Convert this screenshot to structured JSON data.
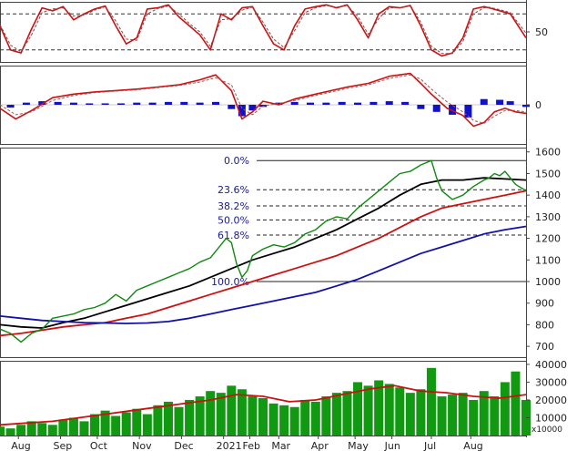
{
  "chart_data": [
    {
      "type": "line",
      "panel": "stochastic",
      "ylim": [
        0,
        100
      ],
      "y_ticks": [
        "50"
      ],
      "y_tick_values": [
        50
      ],
      "reference_levels": [
        80,
        20
      ],
      "series": [
        {
          "color": "#cc1111",
          "style": "solid",
          "x": [
            0.0,
            0.02,
            0.04,
            0.06,
            0.08,
            0.1,
            0.12,
            0.14,
            0.16,
            0.18,
            0.2,
            0.22,
            0.24,
            0.26,
            0.28,
            0.3,
            0.32,
            0.34,
            0.36,
            0.38,
            0.4,
            0.42,
            0.44,
            0.46,
            0.48,
            0.5,
            0.52,
            0.54,
            0.56,
            0.58,
            0.6,
            0.62,
            0.64,
            0.66,
            0.68,
            0.7,
            0.72,
            0.74,
            0.76,
            0.78,
            0.8,
            0.82,
            0.84,
            0.86,
            0.88,
            0.9,
            0.92,
            0.93,
            0.95,
            0.97,
            1.0
          ],
          "values": [
            60,
            20,
            15,
            55,
            90,
            85,
            92,
            70,
            80,
            88,
            93,
            60,
            30,
            40,
            88,
            90,
            95,
            75,
            60,
            45,
            20,
            80,
            70,
            90,
            92,
            60,
            30,
            20,
            60,
            88,
            92,
            95,
            90,
            95,
            70,
            40,
            80,
            92,
            90,
            94,
            60,
            20,
            10,
            15,
            40,
            88,
            92,
            90,
            85,
            80,
            40
          ]
        },
        {
          "color": "#884444",
          "style": "dashed",
          "x": [
            0.0,
            0.02,
            0.04,
            0.06,
            0.08,
            0.1,
            0.12,
            0.14,
            0.16,
            0.18,
            0.2,
            0.22,
            0.24,
            0.26,
            0.28,
            0.3,
            0.32,
            0.34,
            0.36,
            0.38,
            0.4,
            0.42,
            0.44,
            0.46,
            0.48,
            0.5,
            0.52,
            0.54,
            0.56,
            0.58,
            0.6,
            0.62,
            0.64,
            0.66,
            0.68,
            0.7,
            0.72,
            0.74,
            0.76,
            0.78,
            0.8,
            0.82,
            0.84,
            0.86,
            0.88,
            0.9,
            0.92,
            0.93,
            0.95,
            0.97,
            1.0
          ],
          "values": [
            62,
            28,
            17,
            45,
            82,
            88,
            90,
            76,
            78,
            86,
            92,
            68,
            38,
            36,
            80,
            89,
            93,
            80,
            64,
            50,
            26,
            70,
            72,
            86,
            91,
            66,
            38,
            24,
            52,
            82,
            90,
            94,
            91,
            94,
            76,
            46,
            72,
            90,
            90,
            93,
            66,
            26,
            14,
            14,
            34,
            80,
            90,
            91,
            87,
            82,
            48
          ]
        }
      ]
    },
    {
      "type": "line",
      "panel": "macd",
      "y_ticks": [
        "0"
      ],
      "y_tick_values": [
        0
      ],
      "series": [
        {
          "color": "#cc1111",
          "style": "solid",
          "x": [
            0.0,
            0.03,
            0.06,
            0.1,
            0.14,
            0.18,
            0.22,
            0.26,
            0.3,
            0.34,
            0.38,
            0.41,
            0.44,
            0.46,
            0.48,
            0.5,
            0.53,
            0.56,
            0.6,
            0.63,
            0.66,
            0.7,
            0.74,
            0.78,
            0.8,
            0.82,
            0.85,
            0.88,
            0.9,
            0.92,
            0.94,
            0.96,
            0.98,
            1.0
          ],
          "values": [
            -5,
            -20,
            -8,
            10,
            15,
            18,
            20,
            22,
            25,
            28,
            35,
            42,
            20,
            -20,
            -10,
            5,
            0,
            8,
            15,
            20,
            25,
            30,
            40,
            44,
            30,
            15,
            -5,
            -15,
            -30,
            -25,
            -10,
            -5,
            -10,
            -12
          ]
        },
        {
          "color": "#aa5555",
          "style": "dashed",
          "x": [
            0.0,
            0.03,
            0.06,
            0.1,
            0.14,
            0.18,
            0.22,
            0.26,
            0.3,
            0.34,
            0.38,
            0.41,
            0.44,
            0.46,
            0.48,
            0.5,
            0.53,
            0.56,
            0.6,
            0.63,
            0.66,
            0.7,
            0.74,
            0.78,
            0.8,
            0.82,
            0.85,
            0.88,
            0.9,
            0.92,
            0.94,
            0.96,
            0.98,
            1.0
          ],
          "values": [
            0,
            -14,
            -10,
            6,
            13,
            17,
            19,
            21,
            24,
            27,
            32,
            38,
            28,
            -5,
            -14,
            -2,
            2,
            6,
            13,
            18,
            23,
            28,
            37,
            42,
            36,
            22,
            4,
            -10,
            -22,
            -26,
            -16,
            -8,
            -8,
            -10
          ]
        }
      ],
      "histogram": {
        "color": "#1111cc",
        "x": [
          0.02,
          0.05,
          0.08,
          0.11,
          0.14,
          0.17,
          0.2,
          0.23,
          0.26,
          0.29,
          0.32,
          0.35,
          0.38,
          0.41,
          0.44,
          0.46,
          0.48,
          0.5,
          0.53,
          0.56,
          0.59,
          0.62,
          0.65,
          0.68,
          0.71,
          0.74,
          0.77,
          0.8,
          0.83,
          0.86,
          0.89,
          0.92,
          0.95,
          0.97,
          1.0
        ],
        "values": [
          -4,
          3,
          5,
          4,
          3,
          2,
          2,
          2,
          3,
          3,
          4,
          4,
          3,
          4,
          -6,
          -16,
          -8,
          -3,
          3,
          4,
          3,
          3,
          4,
          3,
          4,
          5,
          4,
          -6,
          -10,
          -14,
          -18,
          8,
          7,
          5,
          -3
        ]
      }
    },
    {
      "type": "line",
      "panel": "price",
      "ylim": [
        650,
        1620
      ],
      "y_ticks": [
        "700",
        "800",
        "900",
        "1000",
        "1100",
        "1200",
        "1300",
        "1400",
        "1500",
        "1600"
      ],
      "y_tick_values": [
        700,
        800,
        900,
        1000,
        1100,
        1200,
        1300,
        1400,
        1500,
        1600
      ],
      "x_ticks": [
        "Aug",
        "Sep",
        "Oct",
        "Nov",
        "Dec",
        "2021",
        "Feb",
        "Mar",
        "Apr",
        "May",
        "Jun",
        "Jul",
        "Aug"
      ],
      "x_tick_positions": [
        0.035,
        0.115,
        0.185,
        0.265,
        0.345,
        0.425,
        0.475,
        0.53,
        0.605,
        0.675,
        0.745,
        0.82,
        0.895
      ],
      "fibonacci": [
        {
          "label": "0.0%",
          "value": 1560
        },
        {
          "label": "23.6%",
          "value": 1425
        },
        {
          "label": "38.2%",
          "value": 1350
        },
        {
          "label": "50.0%",
          "value": 1285
        },
        {
          "label": "61.8%",
          "value": 1215
        },
        {
          "label": "100.0%",
          "value": 1000
        }
      ],
      "price": {
        "color": "#118811",
        "x": [
          0.0,
          0.02,
          0.04,
          0.06,
          0.08,
          0.1,
          0.12,
          0.14,
          0.16,
          0.18,
          0.2,
          0.22,
          0.24,
          0.26,
          0.28,
          0.3,
          0.32,
          0.34,
          0.36,
          0.38,
          0.4,
          0.42,
          0.43,
          0.44,
          0.45,
          0.46,
          0.47,
          0.48,
          0.5,
          0.52,
          0.54,
          0.56,
          0.58,
          0.6,
          0.62,
          0.64,
          0.66,
          0.68,
          0.7,
          0.72,
          0.74,
          0.76,
          0.78,
          0.8,
          0.81,
          0.82,
          0.83,
          0.84,
          0.86,
          0.88,
          0.9,
          0.92,
          0.93,
          0.94,
          0.95,
          0.96,
          0.97,
          0.98,
          1.0
        ],
        "values": [
          780,
          760,
          720,
          760,
          780,
          830,
          840,
          850,
          870,
          880,
          900,
          940,
          910,
          960,
          980,
          1000,
          1020,
          1040,
          1060,
          1090,
          1110,
          1170,
          1200,
          1180,
          1080,
          1020,
          1050,
          1120,
          1150,
          1170,
          1160,
          1180,
          1220,
          1240,
          1280,
          1300,
          1290,
          1340,
          1380,
          1420,
          1460,
          1500,
          1510,
          1540,
          1550,
          1560,
          1480,
          1420,
          1380,
          1400,
          1440,
          1470,
          1480,
          1500,
          1490,
          1510,
          1480,
          1450,
          1420
        ]
      },
      "series": [
        {
          "color": "#000000",
          "style": "solid",
          "x": [
            0.0,
            0.04,
            0.08,
            0.12,
            0.16,
            0.2,
            0.24,
            0.28,
            0.32,
            0.36,
            0.4,
            0.44,
            0.48,
            0.52,
            0.56,
            0.6,
            0.64,
            0.68,
            0.72,
            0.76,
            0.8,
            0.84,
            0.88,
            0.92,
            0.96,
            1.0
          ],
          "values": [
            800,
            790,
            785,
            810,
            830,
            860,
            890,
            920,
            950,
            980,
            1020,
            1060,
            1100,
            1130,
            1160,
            1200,
            1240,
            1290,
            1340,
            1400,
            1450,
            1470,
            1470,
            1480,
            1475,
            1470
          ]
        },
        {
          "color": "#cc1111",
          "style": "solid",
          "x": [
            0.0,
            0.04,
            0.08,
            0.12,
            0.16,
            0.2,
            0.24,
            0.28,
            0.32,
            0.36,
            0.4,
            0.44,
            0.48,
            0.52,
            0.56,
            0.6,
            0.64,
            0.68,
            0.72,
            0.76,
            0.8,
            0.84,
            0.88,
            0.92,
            0.96,
            1.0
          ],
          "values": [
            750,
            760,
            775,
            790,
            800,
            810,
            830,
            850,
            880,
            910,
            940,
            970,
            1000,
            1030,
            1060,
            1090,
            1120,
            1160,
            1200,
            1250,
            1300,
            1340,
            1360,
            1380,
            1400,
            1420
          ]
        },
        {
          "color": "#1111aa",
          "style": "solid",
          "x": [
            0.0,
            0.04,
            0.08,
            0.12,
            0.16,
            0.2,
            0.24,
            0.28,
            0.32,
            0.36,
            0.4,
            0.44,
            0.48,
            0.52,
            0.56,
            0.6,
            0.64,
            0.68,
            0.72,
            0.76,
            0.8,
            0.84,
            0.88,
            0.92,
            0.96,
            1.0
          ],
          "values": [
            840,
            830,
            820,
            815,
            810,
            808,
            806,
            808,
            815,
            830,
            850,
            870,
            890,
            910,
            930,
            950,
            980,
            1010,
            1050,
            1090,
            1130,
            1160,
            1190,
            1220,
            1240,
            1255
          ]
        }
      ]
    },
    {
      "type": "bar",
      "panel": "volume",
      "ylim": [
        0,
        42000
      ],
      "y_ticks": [
        "10000",
        "20000",
        "30000",
        "40000"
      ],
      "y_tick_values": [
        10000,
        20000,
        30000,
        40000
      ],
      "unit_label": "x10000",
      "bars": {
        "color": "#119911",
        "x": [
          0.0,
          0.02,
          0.04,
          0.06,
          0.08,
          0.1,
          0.12,
          0.14,
          0.16,
          0.18,
          0.2,
          0.22,
          0.24,
          0.26,
          0.28,
          0.3,
          0.32,
          0.34,
          0.36,
          0.38,
          0.4,
          0.42,
          0.44,
          0.46,
          0.48,
          0.5,
          0.52,
          0.54,
          0.56,
          0.58,
          0.6,
          0.62,
          0.64,
          0.66,
          0.68,
          0.7,
          0.72,
          0.74,
          0.76,
          0.78,
          0.8,
          0.82,
          0.84,
          0.86,
          0.88,
          0.9,
          0.92,
          0.94,
          0.96,
          0.98,
          1.0
        ],
        "values": [
          5000,
          4000,
          6000,
          8000,
          7000,
          6000,
          9000,
          10000,
          8000,
          12000,
          14000,
          11000,
          13000,
          15000,
          12000,
          17000,
          19000,
          16000,
          20000,
          22000,
          25000,
          24000,
          28000,
          26000,
          22000,
          21000,
          18000,
          17000,
          16000,
          20000,
          19000,
          22000,
          24000,
          25000,
          30000,
          28000,
          31000,
          29000,
          27000,
          24000,
          26000,
          38000,
          22000,
          23000,
          24000,
          20000,
          25000,
          22000,
          30000,
          36000,
          20000
        ]
      },
      "series": [
        {
          "color": "#cc1111",
          "style": "solid",
          "x": [
            0.0,
            0.05,
            0.1,
            0.15,
            0.2,
            0.25,
            0.3,
            0.35,
            0.4,
            0.45,
            0.5,
            0.55,
            0.6,
            0.65,
            0.7,
            0.75,
            0.8,
            0.85,
            0.9,
            0.95,
            1.0
          ],
          "values": [
            6000,
            7000,
            8000,
            10000,
            12000,
            14000,
            16000,
            18000,
            20000,
            23000,
            22000,
            19000,
            20000,
            23000,
            26000,
            28000,
            25000,
            24000,
            22000,
            21000,
            23000
          ]
        }
      ]
    }
  ]
}
